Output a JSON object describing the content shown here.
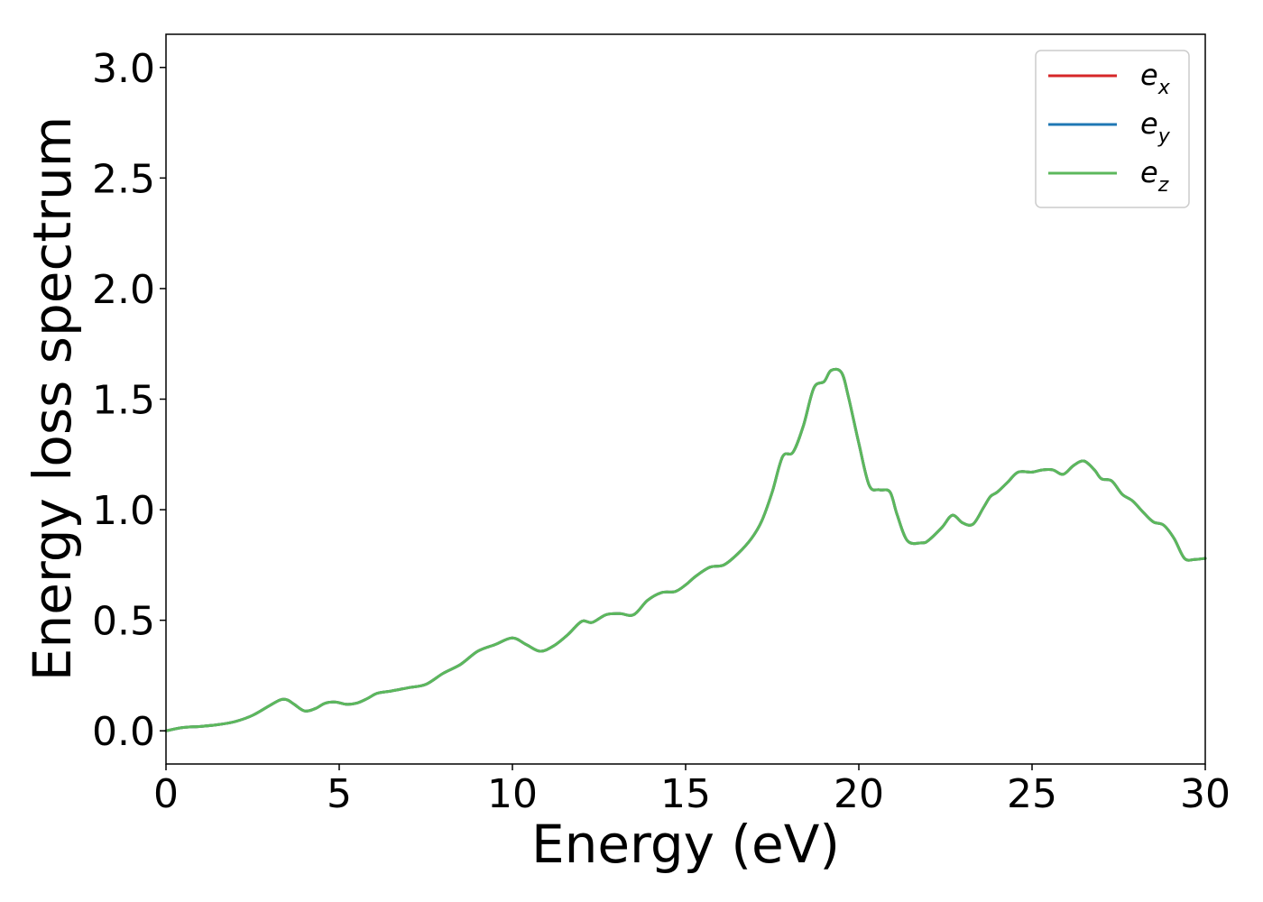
{
  "chart_data": {
    "type": "line",
    "title": "",
    "xlabel": "Energy (eV)",
    "ylabel": "Energy loss spectrum",
    "xlim": [
      0,
      30
    ],
    "ylim": [
      -0.15,
      3.15
    ],
    "xticks": [
      0,
      5,
      10,
      15,
      20,
      25,
      30
    ],
    "yticks": [
      0.0,
      0.5,
      1.0,
      1.5,
      2.0,
      2.5,
      3.0
    ],
    "xtick_labels": [
      "0",
      "5",
      "10",
      "15",
      "20",
      "25",
      "30"
    ],
    "ytick_labels": [
      "0.0",
      "0.5",
      "1.0",
      "1.5",
      "2.0",
      "2.5",
      "3.0"
    ],
    "grid": false,
    "legend_position": "top-right",
    "x": [
      0,
      0.5,
      1.0,
      1.5,
      2.0,
      2.5,
      3.0,
      3.3,
      3.5,
      3.7,
      4.0,
      4.3,
      4.6,
      4.9,
      5.2,
      5.5,
      5.8,
      6.1,
      6.5,
      7.0,
      7.5,
      8.0,
      8.5,
      9.0,
      9.5,
      10.0,
      10.4,
      10.8,
      11.2,
      11.6,
      12.0,
      12.3,
      12.7,
      13.1,
      13.5,
      13.9,
      14.3,
      14.7,
      15.0,
      15.3,
      15.7,
      16.1,
      16.5,
      16.9,
      17.2,
      17.5,
      17.8,
      18.1,
      18.4,
      18.7,
      19.0,
      19.2,
      19.5,
      19.7,
      20.0,
      20.3,
      20.6,
      20.9,
      21.1,
      21.4,
      21.8,
      22.0,
      22.4,
      22.7,
      23.0,
      23.3,
      23.6,
      23.8,
      24.0,
      24.3,
      24.6,
      25.0,
      25.3,
      25.6,
      25.9,
      26.2,
      26.5,
      26.8,
      27.0,
      27.3,
      27.6,
      27.9,
      28.2,
      28.5,
      28.8,
      29.1,
      29.4,
      29.7,
      30.0
    ],
    "series": [
      {
        "name": "e_x",
        "color": "#d62728",
        "y": [
          0.0,
          0.015,
          0.02,
          0.028,
          0.042,
          0.07,
          0.115,
          0.14,
          0.14,
          0.12,
          0.09,
          0.1,
          0.125,
          0.13,
          0.12,
          0.125,
          0.145,
          0.17,
          0.18,
          0.195,
          0.21,
          0.26,
          0.3,
          0.36,
          0.39,
          0.42,
          0.39,
          0.36,
          0.385,
          0.435,
          0.495,
          0.49,
          0.525,
          0.53,
          0.525,
          0.59,
          0.625,
          0.63,
          0.66,
          0.7,
          0.74,
          0.75,
          0.8,
          0.87,
          0.95,
          1.08,
          1.24,
          1.26,
          1.38,
          1.55,
          1.58,
          1.63,
          1.62,
          1.51,
          1.3,
          1.11,
          1.09,
          1.08,
          0.98,
          0.86,
          0.85,
          0.86,
          0.92,
          0.975,
          0.94,
          0.935,
          1.01,
          1.06,
          1.08,
          1.125,
          1.17,
          1.17,
          1.18,
          1.18,
          1.16,
          1.2,
          1.22,
          1.18,
          1.14,
          1.13,
          1.07,
          1.04,
          0.99,
          0.945,
          0.93,
          0.87,
          0.78,
          0.775,
          0.78
        ]
      },
      {
        "name": "e_y",
        "color": "#1f77b4",
        "y": [
          0.0,
          0.015,
          0.02,
          0.028,
          0.042,
          0.07,
          0.115,
          0.14,
          0.14,
          0.12,
          0.09,
          0.1,
          0.125,
          0.13,
          0.12,
          0.125,
          0.145,
          0.17,
          0.18,
          0.195,
          0.21,
          0.26,
          0.3,
          0.36,
          0.39,
          0.42,
          0.39,
          0.36,
          0.385,
          0.435,
          0.495,
          0.49,
          0.525,
          0.53,
          0.525,
          0.59,
          0.625,
          0.63,
          0.66,
          0.7,
          0.74,
          0.75,
          0.8,
          0.87,
          0.95,
          1.08,
          1.24,
          1.26,
          1.38,
          1.55,
          1.58,
          1.63,
          1.62,
          1.51,
          1.3,
          1.11,
          1.09,
          1.08,
          0.98,
          0.86,
          0.85,
          0.86,
          0.92,
          0.975,
          0.94,
          0.935,
          1.01,
          1.06,
          1.08,
          1.125,
          1.17,
          1.17,
          1.18,
          1.18,
          1.16,
          1.2,
          1.22,
          1.18,
          1.14,
          1.13,
          1.07,
          1.04,
          0.99,
          0.945,
          0.93,
          0.87,
          0.78,
          0.775,
          0.78
        ]
      },
      {
        "name": "e_z",
        "color": "#5cb85c",
        "y": [
          0.0,
          0.015,
          0.02,
          0.028,
          0.042,
          0.07,
          0.115,
          0.14,
          0.14,
          0.12,
          0.09,
          0.1,
          0.125,
          0.13,
          0.12,
          0.125,
          0.145,
          0.17,
          0.18,
          0.195,
          0.21,
          0.26,
          0.3,
          0.36,
          0.39,
          0.42,
          0.39,
          0.36,
          0.385,
          0.435,
          0.495,
          0.49,
          0.525,
          0.53,
          0.525,
          0.59,
          0.625,
          0.63,
          0.66,
          0.7,
          0.74,
          0.75,
          0.8,
          0.87,
          0.95,
          1.08,
          1.24,
          1.26,
          1.38,
          1.55,
          1.58,
          1.63,
          1.62,
          1.51,
          1.3,
          1.11,
          1.09,
          1.08,
          0.98,
          0.86,
          0.85,
          0.86,
          0.92,
          0.975,
          0.94,
          0.935,
          1.01,
          1.06,
          1.08,
          1.125,
          1.17,
          1.17,
          1.18,
          1.18,
          1.16,
          1.2,
          1.22,
          1.18,
          1.14,
          1.13,
          1.07,
          1.04,
          0.99,
          0.945,
          0.93,
          0.87,
          0.78,
          0.775,
          0.78
        ]
      }
    ],
    "legend": [
      {
        "base": "e",
        "sub": "x",
        "color": "#d62728"
      },
      {
        "base": "e",
        "sub": "y",
        "color": "#1f77b4"
      },
      {
        "base": "e",
        "sub": "z",
        "color": "#5cb85c"
      }
    ]
  }
}
